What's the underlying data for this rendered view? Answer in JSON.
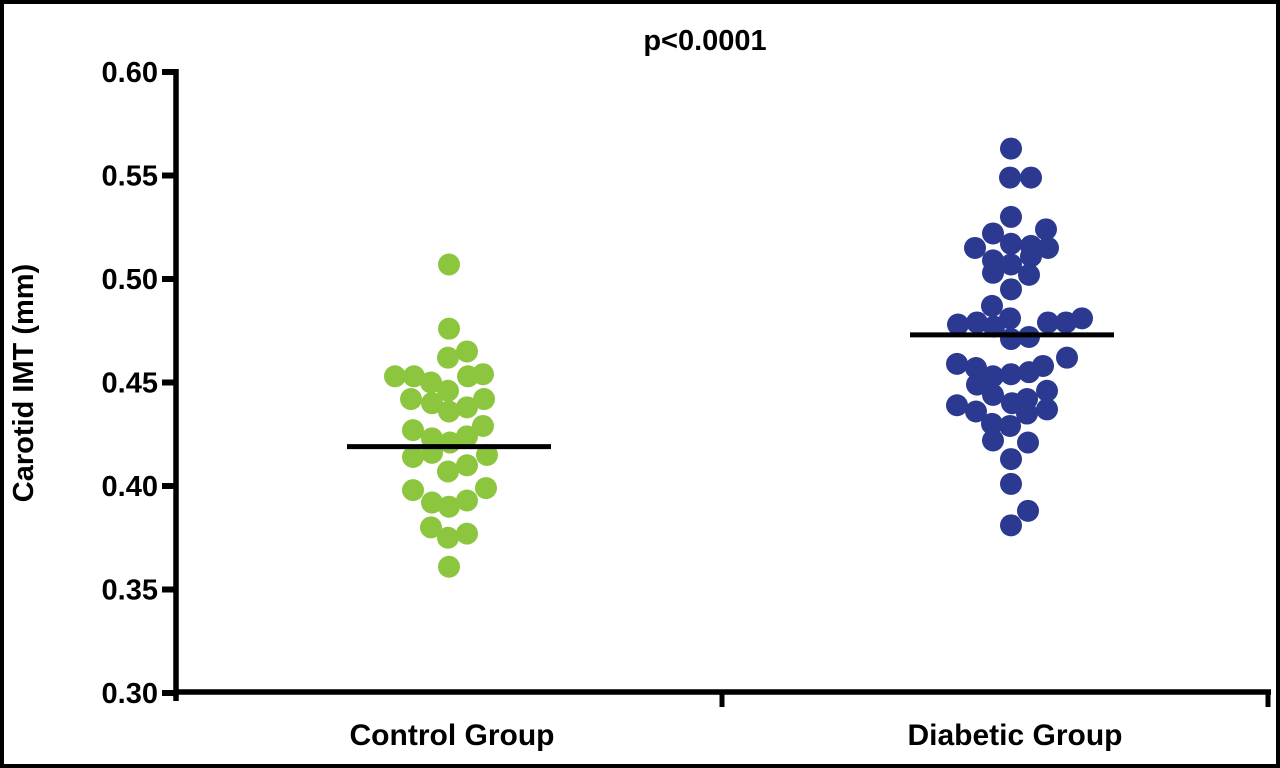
{
  "figure": {
    "title": "p<0.0001",
    "ylabel": "Carotid IMT (mm)"
  },
  "chart_data": {
    "type": "scatter",
    "subtype": "dot-plot-beeswarm-with-mean-lines",
    "title": "p<0.0001",
    "xlabel": "",
    "ylabel": "Carotid IMT (mm)",
    "ylim": [
      0.3,
      0.6
    ],
    "yticks": [
      "0.60",
      "0.55",
      "0.50",
      "0.45",
      "0.40",
      "0.35",
      "0.30"
    ],
    "ytick_values": [
      0.6,
      0.55,
      0.5,
      0.45,
      0.4,
      0.35,
      0.3
    ],
    "grid": false,
    "legend_position": "none",
    "colors": {
      "control_dot": "#8CC63E",
      "diabetic_dot": "#2B3990",
      "mean_line": "#000000",
      "axis": "#000000",
      "frame": "#000000",
      "background": "#FFFFFF"
    },
    "groups": [
      {
        "label": "Control Group",
        "color": "#8CC63E",
        "mean": 0.419,
        "n": 34,
        "points": [
          [
            0,
            0.507
          ],
          [
            0,
            0.476
          ],
          [
            -1,
            0.462
          ],
          [
            18,
            0.465
          ],
          [
            -54,
            0.453
          ],
          [
            -35,
            0.453
          ],
          [
            -18,
            0.45
          ],
          [
            19,
            0.453
          ],
          [
            34,
            0.454
          ],
          [
            -1,
            0.446
          ],
          [
            -38,
            0.442
          ],
          [
            -17,
            0.44
          ],
          [
            0,
            0.436
          ],
          [
            18,
            0.438
          ],
          [
            35,
            0.442
          ],
          [
            -36,
            0.427
          ],
          [
            -17,
            0.423
          ],
          [
            1,
            0.421
          ],
          [
            18,
            0.424
          ],
          [
            34,
            0.429
          ],
          [
            -36,
            0.414
          ],
          [
            -17,
            0.416
          ],
          [
            -1,
            0.407
          ],
          [
            18,
            0.41
          ],
          [
            38,
            0.415
          ],
          [
            -36,
            0.398
          ],
          [
            37,
            0.399
          ],
          [
            -17,
            0.392
          ],
          [
            0,
            0.39
          ],
          [
            18,
            0.393
          ],
          [
            -18,
            0.38
          ],
          [
            -1,
            0.375
          ],
          [
            18,
            0.377
          ],
          [
            0,
            0.361
          ]
        ]
      },
      {
        "label": "Diabetic Group",
        "color": "#2B3990",
        "mean": 0.473,
        "n": 50,
        "points": [
          [
            -1,
            0.563
          ],
          [
            -2,
            0.549
          ],
          [
            19,
            0.549
          ],
          [
            -1,
            0.53
          ],
          [
            -19,
            0.522
          ],
          [
            34,
            0.524
          ],
          [
            -1,
            0.517
          ],
          [
            19,
            0.516
          ],
          [
            -37,
            0.515
          ],
          [
            36,
            0.515
          ],
          [
            -19,
            0.509
          ],
          [
            19,
            0.511
          ],
          [
            -1,
            0.507
          ],
          [
            -19,
            0.503
          ],
          [
            17,
            0.502
          ],
          [
            -1,
            0.495
          ],
          [
            -20,
            0.487
          ],
          [
            -2,
            0.481
          ],
          [
            -54,
            0.478
          ],
          [
            -35,
            0.479
          ],
          [
            -18,
            0.477
          ],
          [
            36,
            0.479
          ],
          [
            54,
            0.479
          ],
          [
            70,
            0.481
          ],
          [
            -1,
            0.471
          ],
          [
            17,
            0.472
          ],
          [
            55,
            0.462
          ],
          [
            -55,
            0.459
          ],
          [
            -36,
            0.457
          ],
          [
            -19,
            0.453
          ],
          [
            -1,
            0.454
          ],
          [
            17,
            0.455
          ],
          [
            31,
            0.458
          ],
          [
            -35,
            0.449
          ],
          [
            35,
            0.446
          ],
          [
            -19,
            0.444
          ],
          [
            0,
            0.44
          ],
          [
            -55,
            0.439
          ],
          [
            -36,
            0.436
          ],
          [
            15,
            0.442
          ],
          [
            15,
            0.435
          ],
          [
            35,
            0.437
          ],
          [
            -20,
            0.43
          ],
          [
            -2,
            0.429
          ],
          [
            -19,
            0.422
          ],
          [
            16,
            0.421
          ],
          [
            -1,
            0.413
          ],
          [
            -1,
            0.401
          ],
          [
            16,
            0.388
          ],
          [
            -1,
            0.381
          ]
        ]
      }
    ]
  }
}
